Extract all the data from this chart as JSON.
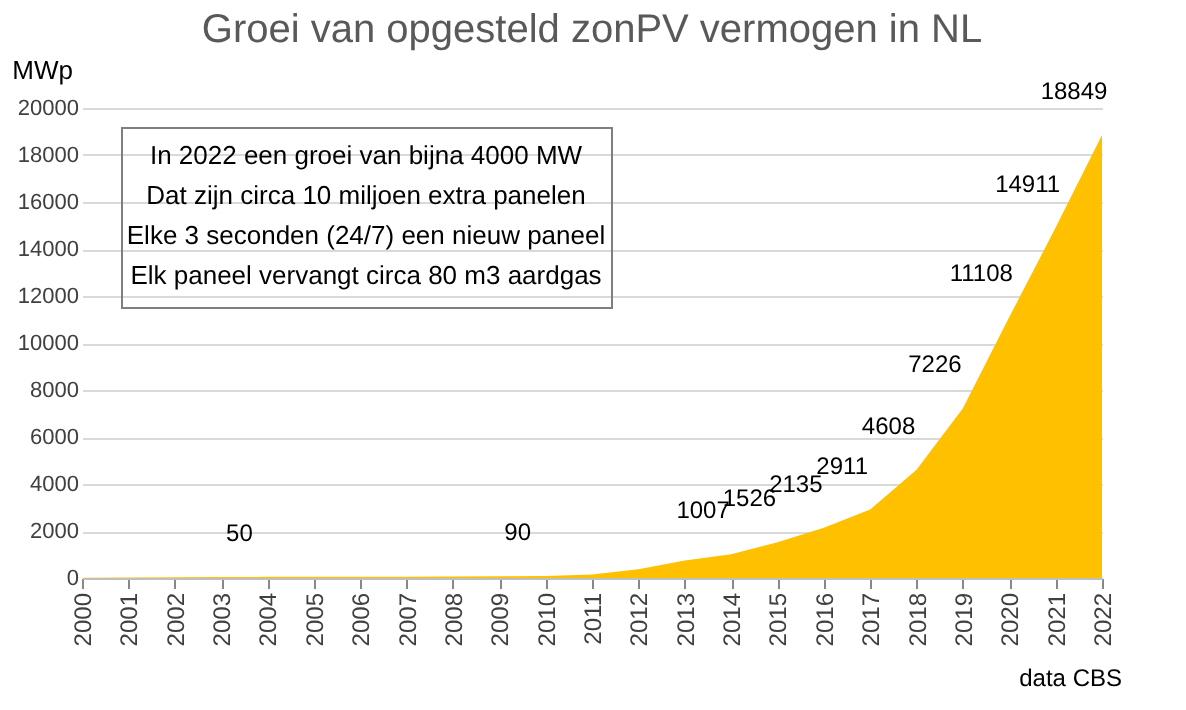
{
  "chart_data": {
    "type": "area",
    "title": "Groei van opgesteld zonPV vermogen in NL",
    "ylabel": "MWp",
    "categories": [
      "2000",
      "2001",
      "2002",
      "2003",
      "2004",
      "2005",
      "2006",
      "2007",
      "2008",
      "2009",
      "2010",
      "2011",
      "2012",
      "2013",
      "2014",
      "2015",
      "2016",
      "2017",
      "2018",
      "2019",
      "2020",
      "2021",
      "2022"
    ],
    "series": [
      {
        "color": "#ffc000",
        "values": [
          10,
          20,
          30,
          40,
          50,
          50,
          50,
          50,
          60,
          70,
          90,
          150,
          370,
          740,
          1007,
          1526,
          2135,
          2911,
          4608,
          7226,
          11108,
          14911,
          18849
        ],
        "value_labels": [
          null,
          null,
          null,
          null,
          "50",
          null,
          null,
          null,
          null,
          null,
          "90",
          null,
          null,
          null,
          "1007",
          "1526",
          "2135",
          "2911",
          "4608",
          "7226",
          "11108",
          "14911",
          "18849"
        ]
      }
    ],
    "ylim": [
      0,
      20000
    ],
    "yticks": [
      0,
      2000,
      4000,
      6000,
      8000,
      10000,
      12000,
      14000,
      16000,
      18000,
      20000
    ],
    "grid": "y",
    "annotations": [
      "In 2022 een groei van bijna 4000 MW",
      "Dat zijn circa 10 miljoen extra panelen",
      "Elke 3 seconden (24/7) een nieuw paneel",
      "Elk paneel vervangt circa 80 m3 aardgas",
      "data CBS"
    ]
  }
}
